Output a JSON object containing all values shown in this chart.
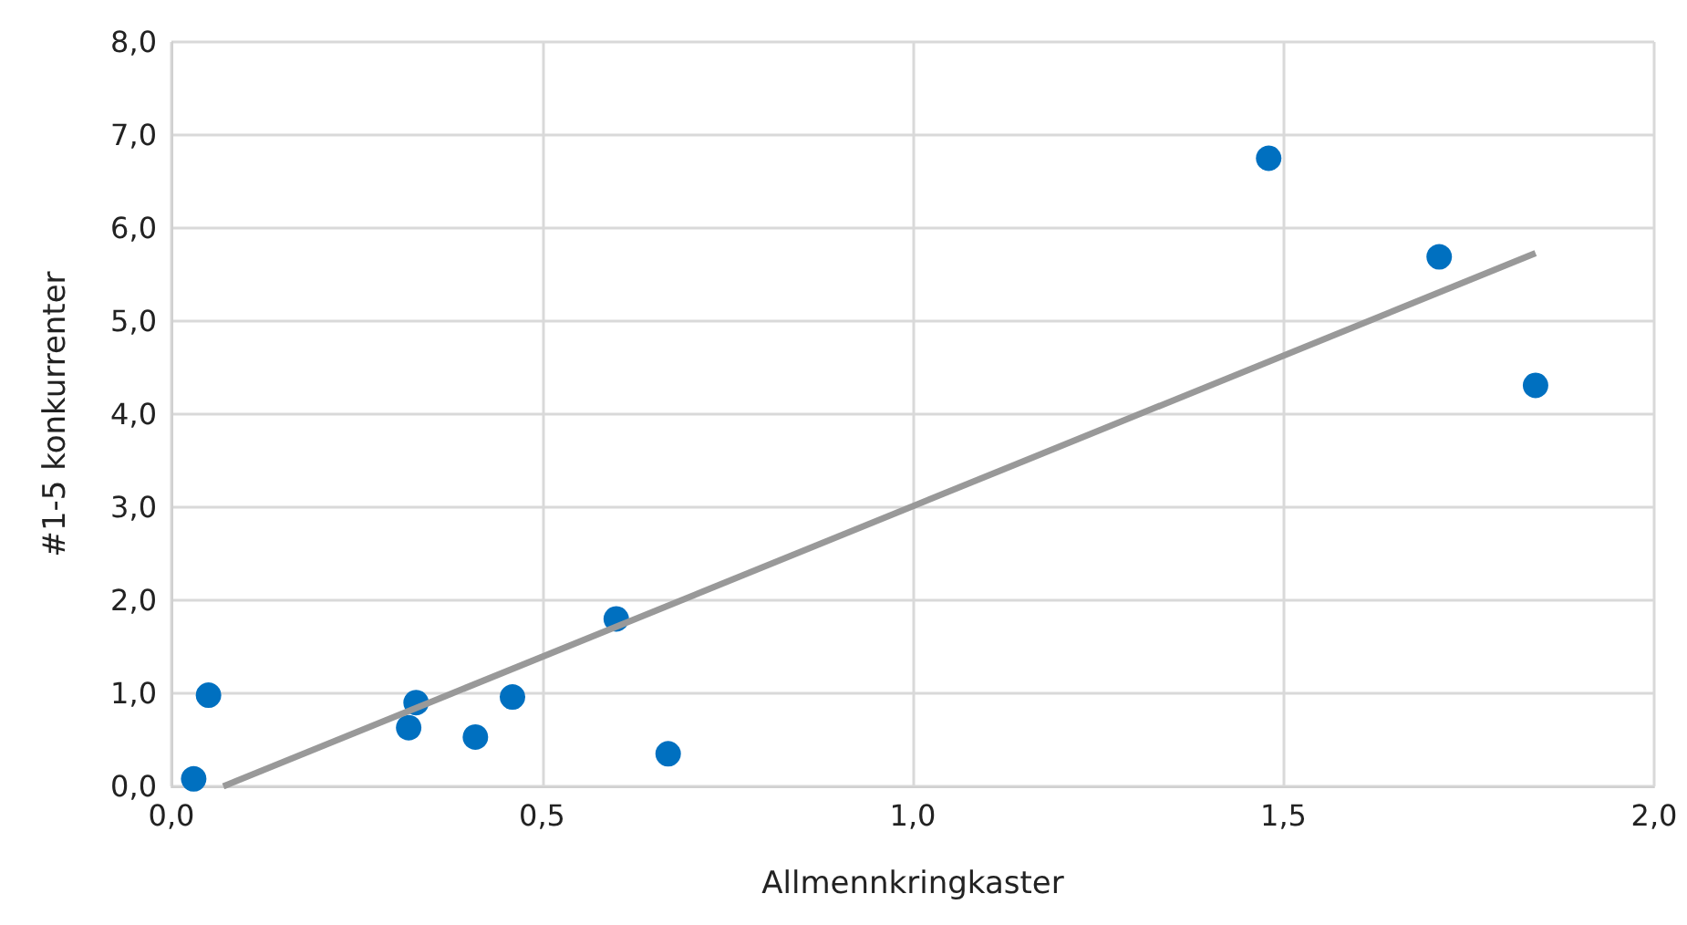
{
  "chart_data": {
    "type": "scatter",
    "xlabel": "Allmennkringkaster",
    "ylabel": "#1-5 konkurrenter",
    "xlim": [
      0,
      2
    ],
    "ylim": [
      0,
      8
    ],
    "xticks": [
      {
        "value": 0,
        "label": "0,0"
      },
      {
        "value": 0.5,
        "label": "0,5"
      },
      {
        "value": 1,
        "label": "1,0"
      },
      {
        "value": 1.5,
        "label": "1,5"
      },
      {
        "value": 2,
        "label": "2,0"
      }
    ],
    "yticks": [
      {
        "value": 0,
        "label": "0,0"
      },
      {
        "value": 1,
        "label": "1,0"
      },
      {
        "value": 2,
        "label": "2,0"
      },
      {
        "value": 3,
        "label": "3,0"
      },
      {
        "value": 4,
        "label": "4,0"
      },
      {
        "value": 5,
        "label": "5,0"
      },
      {
        "value": 6,
        "label": "6,0"
      },
      {
        "value": 7,
        "label": "7,0"
      },
      {
        "value": 8,
        "label": "8,0"
      }
    ],
    "grid": true,
    "series": [
      {
        "marker": "circle",
        "color": "#0070c0",
        "x": [
          0.03,
          0.05,
          0.32,
          0.33,
          0.41,
          0.46,
          0.6,
          0.67,
          1.48,
          1.71,
          1.84
        ],
        "values": [
          0.08,
          0.98,
          0.63,
          0.9,
          0.53,
          0.96,
          1.8,
          0.35,
          6.75,
          5.69,
          4.31
        ]
      },
      {
        "type": "line",
        "marker": "none",
        "color": "#999999",
        "x": [
          0.07,
          1.84
        ],
        "values": [
          0,
          5.73
        ]
      }
    ]
  }
}
